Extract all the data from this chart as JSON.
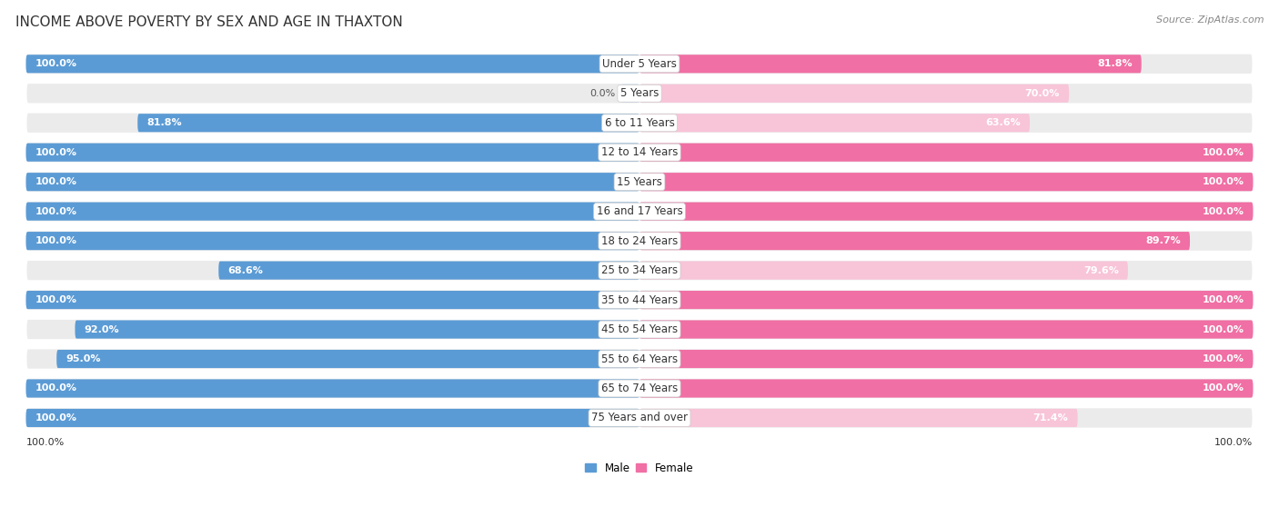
{
  "title": "INCOME ABOVE POVERTY BY SEX AND AGE IN THAXTON",
  "source": "Source: ZipAtlas.com",
  "categories": [
    "Under 5 Years",
    "5 Years",
    "6 to 11 Years",
    "12 to 14 Years",
    "15 Years",
    "16 and 17 Years",
    "18 to 24 Years",
    "25 to 34 Years",
    "35 to 44 Years",
    "45 to 54 Years",
    "55 to 64 Years",
    "65 to 74 Years",
    "75 Years and over"
  ],
  "male_values": [
    100.0,
    0.0,
    81.8,
    100.0,
    100.0,
    100.0,
    100.0,
    68.6,
    100.0,
    92.0,
    95.0,
    100.0,
    100.0
  ],
  "female_values": [
    81.8,
    70.0,
    63.6,
    100.0,
    100.0,
    100.0,
    89.7,
    79.6,
    100.0,
    100.0,
    100.0,
    100.0,
    71.4
  ],
  "male_color": "#5b9bd5",
  "female_color": "#f06fa4",
  "male_light_color": "#bdd7ee",
  "female_light_color": "#f8c4d8",
  "background_color": "#ffffff",
  "row_bg_color": "#ebebeb",
  "title_fontsize": 11,
  "label_fontsize": 8.5,
  "value_fontsize": 8,
  "max_value": 100.0,
  "legend_male": "Male",
  "legend_female": "Female",
  "axis_label_100_left": "100.0%",
  "axis_label_100_right": "100.0%"
}
